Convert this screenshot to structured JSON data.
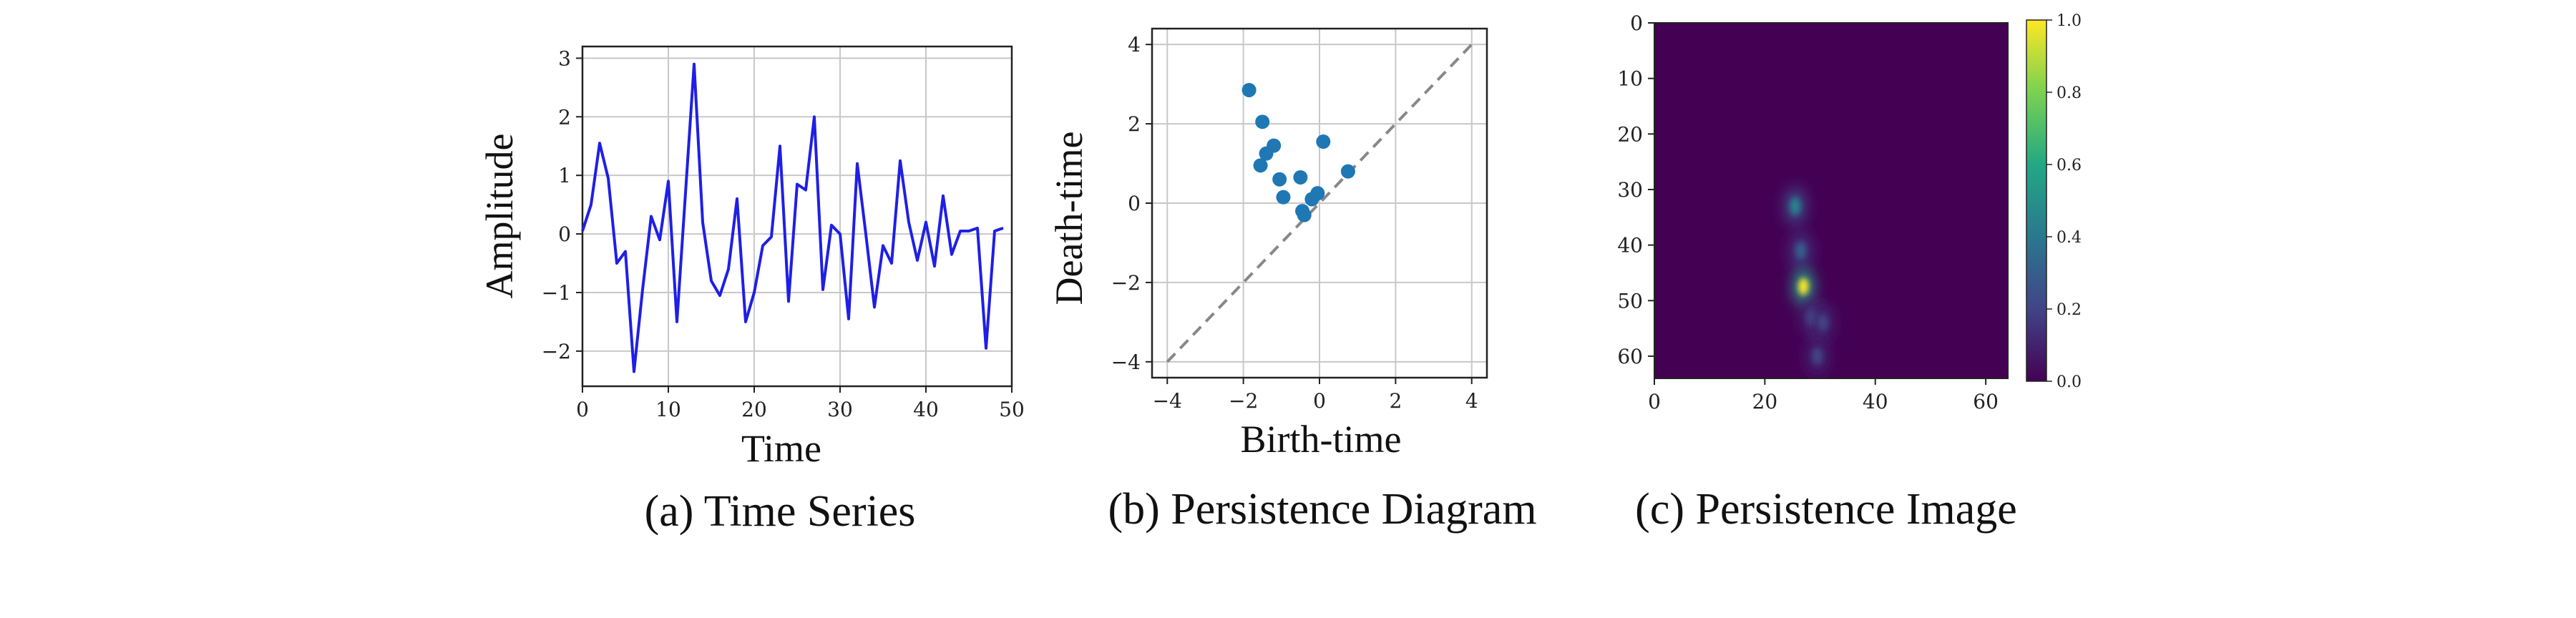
{
  "chart_data": [
    {
      "type": "line",
      "caption": "(a) Time Series",
      "xlabel": "Time",
      "ylabel": "Amplitude",
      "xlim": [
        0,
        50
      ],
      "ylim": [
        -2.6,
        3.2
      ],
      "xticks": [
        "0",
        "10",
        "20",
        "30",
        "40",
        "50"
      ],
      "yticks": [
        "−2",
        "−1",
        "0",
        "1",
        "2",
        "3"
      ],
      "grid": true,
      "line_color": "#1f1fe6",
      "x": [
        0,
        1,
        2,
        3,
        4,
        5,
        6,
        7,
        8,
        9,
        10,
        11,
        12,
        13,
        14,
        15,
        16,
        17,
        18,
        19,
        20,
        21,
        22,
        23,
        24,
        25,
        26,
        27,
        28,
        29,
        30,
        31,
        32,
        33,
        34,
        35,
        36,
        37,
        38,
        39,
        40,
        41,
        42,
        43,
        44,
        45,
        46,
        47,
        48,
        49
      ],
      "y": [
        0.05,
        0.5,
        1.55,
        0.95,
        -0.5,
        -0.3,
        -2.35,
        -0.95,
        0.3,
        -0.1,
        0.9,
        -1.5,
        0.7,
        2.9,
        0.2,
        -0.8,
        -1.05,
        -0.6,
        0.6,
        -1.5,
        -1.0,
        -0.2,
        -0.05,
        1.5,
        -1.15,
        0.85,
        0.75,
        2.0,
        -0.95,
        0.15,
        0.0,
        -1.45,
        1.2,
        0.0,
        -1.25,
        -0.2,
        -0.5,
        1.25,
        0.2,
        -0.45,
        0.2,
        -0.55,
        0.65,
        -0.35,
        0.05,
        0.05,
        0.1,
        -1.95,
        0.05,
        0.1
      ]
    },
    {
      "type": "scatter",
      "caption": "(b) Persistence Diagram",
      "xlabel": "Birth-time",
      "ylabel": "Death-time",
      "xlim": [
        -4.4,
        4.4
      ],
      "ylim": [
        -4.4,
        4.4
      ],
      "xticks": [
        "−4",
        "−2",
        "0",
        "2",
        "4"
      ],
      "yticks": [
        "−4",
        "−2",
        "0",
        "2",
        "4"
      ],
      "grid": true,
      "diagonal": "dashed gray y = x",
      "point_color": "#1f77b4",
      "points": [
        [
          -1.85,
          2.85
        ],
        [
          -1.5,
          2.05
        ],
        [
          -1.2,
          1.45
        ],
        [
          -1.4,
          1.25
        ],
        [
          -1.55,
          0.95
        ],
        [
          -1.05,
          0.6
        ],
        [
          -0.95,
          0.15
        ],
        [
          -0.5,
          0.65
        ],
        [
          -0.4,
          -0.3
        ],
        [
          -0.2,
          0.1
        ],
        [
          -0.05,
          0.25
        ],
        [
          0.1,
          1.55
        ],
        [
          0.75,
          0.8
        ],
        [
          -0.45,
          -0.2
        ]
      ]
    },
    {
      "type": "heatmap",
      "caption": "(c) Persistence Image",
      "xlim": [
        0,
        64
      ],
      "ylim": [
        64,
        0
      ],
      "xticks": [
        "0",
        "20",
        "40",
        "60"
      ],
      "yticks": [
        "0",
        "10",
        "20",
        "30",
        "40",
        "50",
        "60"
      ],
      "colormap": "viridis",
      "colorbar_ticks": [
        "0.0",
        "0.2",
        "0.4",
        "0.6",
        "0.8",
        "1.0"
      ],
      "background_color": "#440154",
      "blobs": [
        {
          "x": 25.5,
          "y": 33,
          "intensity": 0.45
        },
        {
          "x": 26.5,
          "y": 41,
          "intensity": 0.3
        },
        {
          "x": 27,
          "y": 47.5,
          "intensity": 1.0
        },
        {
          "x": 28.5,
          "y": 53,
          "intensity": 0.22
        },
        {
          "x": 30.5,
          "y": 54,
          "intensity": 0.2
        },
        {
          "x": 29.5,
          "y": 60,
          "intensity": 0.2
        }
      ]
    }
  ]
}
